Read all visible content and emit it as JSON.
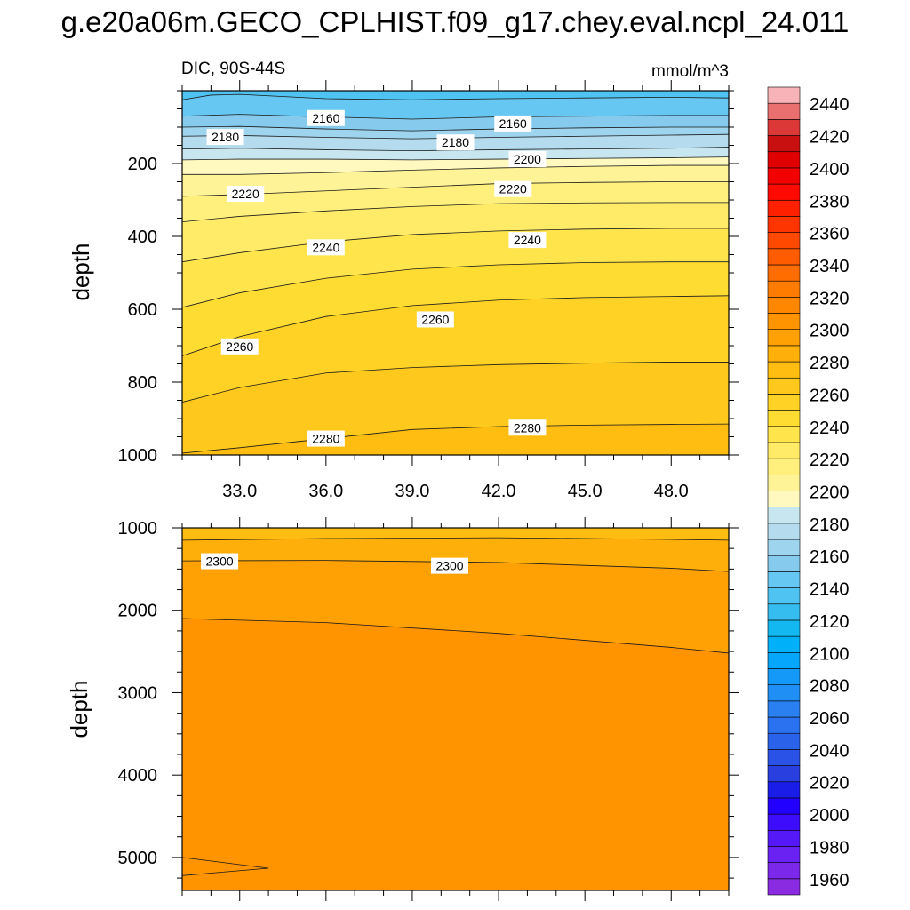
{
  "title": "g.e20a06m.GECO_CPLHIST.f09_g17.chey.eval.ncpl_24.011",
  "chart_data": {
    "type": "contour",
    "variable_label": "DIC, 90S-44S",
    "units": "mmol/m^3",
    "panels": [
      {
        "name": "upper",
        "ylabel": "depth",
        "xlim": [
          31.0,
          50.0
        ],
        "ylim": [
          0,
          1000
        ],
        "y_inverted": true,
        "x_ticks": [
          "33.0",
          "36.0",
          "39.0",
          "42.0",
          "45.0",
          "48.0"
        ],
        "x_tick_values": [
          33,
          36,
          39,
          42,
          45,
          48
        ],
        "y_ticks": [
          "200",
          "400",
          "600",
          "800",
          "1000"
        ],
        "y_tick_values": [
          200,
          400,
          600,
          800,
          1000
        ],
        "contours": [
          {
            "level": 2150,
            "points": [
              [
                31,
                25
              ],
              [
                32,
                12
              ],
              [
                33,
                10
              ],
              [
                36,
                22
              ],
              [
                39,
                25
              ],
              [
                42,
                22
              ],
              [
                45,
                20
              ],
              [
                48,
                18
              ],
              [
                50,
                20
              ]
            ]
          },
          {
            "level": 2160,
            "points": [
              [
                31,
                70
              ],
              [
                33,
                65
              ],
              [
                36,
                72
              ],
              [
                39,
                78
              ],
              [
                42,
                72
              ],
              [
                45,
                70
              ],
              [
                48,
                68
              ],
              [
                50,
                68
              ]
            ]
          },
          {
            "level": 2170,
            "points": [
              [
                31,
                100
              ],
              [
                33,
                98
              ],
              [
                36,
                105
              ],
              [
                39,
                110
              ],
              [
                42,
                105
              ],
              [
                45,
                102
              ],
              [
                48,
                100
              ],
              [
                50,
                100
              ]
            ]
          },
          {
            "level": 2180,
            "points": [
              [
                31,
                125
              ],
              [
                33,
                123
              ],
              [
                36,
                128
              ],
              [
                39,
                132
              ],
              [
                42,
                128
              ],
              [
                45,
                125
              ],
              [
                48,
                122
              ],
              [
                50,
                120
              ]
            ]
          },
          {
            "level": 2190,
            "points": [
              [
                31,
                160
              ],
              [
                33,
                158
              ],
              [
                36,
                162
              ],
              [
                39,
                165
              ],
              [
                42,
                162
              ],
              [
                45,
                160
              ],
              [
                48,
                158
              ],
              [
                50,
                155
              ]
            ]
          },
          {
            "level": 2200,
            "points": [
              [
                31,
                190
              ],
              [
                33,
                188
              ],
              [
                36,
                188
              ],
              [
                39,
                190
              ],
              [
                42,
                188
              ],
              [
                45,
                186
              ],
              [
                48,
                184
              ],
              [
                50,
                182
              ]
            ]
          },
          {
            "level": 2210,
            "points": [
              [
                31,
                230
              ],
              [
                33,
                230
              ],
              [
                36,
                225
              ],
              [
                39,
                218
              ],
              [
                42,
                212
              ],
              [
                45,
                208
              ],
              [
                48,
                205
              ],
              [
                50,
                205
              ]
            ]
          },
          {
            "level": 2220,
            "points": [
              [
                31,
                290
              ],
              [
                33,
                285
              ],
              [
                36,
                275
              ],
              [
                39,
                265
              ],
              [
                42,
                255
              ],
              [
                45,
                252
              ],
              [
                48,
                250
              ],
              [
                50,
                250
              ]
            ]
          },
          {
            "level": 2230,
            "points": [
              [
                31,
                360
              ],
              [
                33,
                345
              ],
              [
                36,
                330
              ],
              [
                39,
                318
              ],
              [
                42,
                310
              ],
              [
                45,
                308
              ],
              [
                48,
                307
              ],
              [
                50,
                307
              ]
            ]
          },
          {
            "level": 2240,
            "points": [
              [
                31,
                470
              ],
              [
                33,
                445
              ],
              [
                36,
                415
              ],
              [
                39,
                395
              ],
              [
                42,
                385
              ],
              [
                45,
                380
              ],
              [
                48,
                378
              ],
              [
                50,
                378
              ]
            ]
          },
          {
            "level": 2250,
            "points": [
              [
                31,
                595
              ],
              [
                33,
                555
              ],
              [
                36,
                515
              ],
              [
                39,
                490
              ],
              [
                42,
                478
              ],
              [
                45,
                472
              ],
              [
                48,
                470
              ],
              [
                50,
                470
              ]
            ]
          },
          {
            "level": 2260,
            "points": [
              [
                31,
                728
              ],
              [
                33,
                675
              ],
              [
                36,
                620
              ],
              [
                39,
                590
              ],
              [
                42,
                575
              ],
              [
                45,
                568
              ],
              [
                48,
                565
              ],
              [
                50,
                563
              ]
            ]
          },
          {
            "level": 2270,
            "points": [
              [
                31,
                855
              ],
              [
                33,
                815
              ],
              [
                36,
                775
              ],
              [
                39,
                760
              ],
              [
                42,
                752
              ],
              [
                45,
                748
              ],
              [
                48,
                745
              ],
              [
                50,
                745
              ]
            ]
          },
          {
            "level": 2280,
            "points": [
              [
                31,
                995
              ],
              [
                33,
                980
              ],
              [
                36,
                955
              ],
              [
                39,
                930
              ],
              [
                42,
                922
              ],
              [
                45,
                918
              ],
              [
                48,
                916
              ],
              [
                50,
                915
              ]
            ]
          }
        ],
        "contour_labels": [
          {
            "text": "2160",
            "x": 36.0,
            "y": 75
          },
          {
            "text": "2160",
            "x": 42.5,
            "y": 90
          },
          {
            "text": "2180",
            "x": 32.5,
            "y": 127
          },
          {
            "text": "2180",
            "x": 40.5,
            "y": 142
          },
          {
            "text": "2200",
            "x": 43.0,
            "y": 188
          },
          {
            "text": "2220",
            "x": 33.2,
            "y": 283
          },
          {
            "text": "2220",
            "x": 42.5,
            "y": 270
          },
          {
            "text": "2240",
            "x": 36.0,
            "y": 430
          },
          {
            "text": "2240",
            "x": 43.0,
            "y": 410
          },
          {
            "text": "2260",
            "x": 39.8,
            "y": 628
          },
          {
            "text": "2260",
            "x": 33.0,
            "y": 702
          },
          {
            "text": "2280",
            "x": 43.0,
            "y": 925
          },
          {
            "text": "2280",
            "x": 36.0,
            "y": 955
          }
        ]
      },
      {
        "name": "lower",
        "ylabel": "depth",
        "xlim": [
          31.0,
          50.0
        ],
        "ylim": [
          1000,
          5400
        ],
        "y_inverted": true,
        "y_ticks": [
          "1000",
          "2000",
          "3000",
          "4000",
          "5000"
        ],
        "y_tick_values": [
          1000,
          2000,
          3000,
          4000,
          5000
        ],
        "contours": [
          {
            "level": 2290,
            "points": [
              [
                31,
                1150
              ],
              [
                36,
                1130
              ],
              [
                42,
                1120
              ],
              [
                48,
                1140
              ],
              [
                50,
                1150
              ]
            ]
          },
          {
            "level": 2300,
            "points": [
              [
                31,
                1400
              ],
              [
                36,
                1395
              ],
              [
                42,
                1420
              ],
              [
                48,
                1490
              ],
              [
                50,
                1530
              ]
            ]
          },
          {
            "level": 2310,
            "points": [
              [
                31,
                2100
              ],
              [
                36,
                2150
              ],
              [
                42,
                2280
              ],
              [
                48,
                2450
              ],
              [
                50,
                2520
              ]
            ]
          },
          {
            "level": 2310,
            "points": [
              [
                31,
                5000
              ],
              [
                34,
                5130
              ],
              [
                31,
                5220
              ]
            ]
          }
        ],
        "contour_labels": [
          {
            "text": "2300",
            "x": 32.3,
            "y": 1405
          },
          {
            "text": "2300",
            "x": 40.3,
            "y": 1460
          }
        ]
      }
    ],
    "colorbar": {
      "levels": [
        1960,
        1970,
        1980,
        1990,
        2000,
        2010,
        2020,
        2030,
        2040,
        2050,
        2060,
        2070,
        2080,
        2090,
        2100,
        2110,
        2120,
        2130,
        2140,
        2150,
        2160,
        2170,
        2180,
        2190,
        2200,
        2210,
        2220,
        2230,
        2240,
        2250,
        2260,
        2270,
        2280,
        2290,
        2300,
        2310,
        2320,
        2330,
        2340,
        2350,
        2360,
        2370,
        2380,
        2390,
        2400,
        2410,
        2420,
        2430,
        2440,
        2450
      ],
      "colors": [
        "#8a2be2",
        "#7b28ea",
        "#6a22f2",
        "#5519f8",
        "#3d0cfc",
        "#2200ff",
        "#1a1ce8",
        "#2a3fe0",
        "#2b52e6",
        "#2b62ea",
        "#2a72ef",
        "#2a80f0",
        "#1f8ff5",
        "#1499f8",
        "#06a6fc",
        "#00b0f8",
        "#14b8f0",
        "#34bdee",
        "#4fc3f2",
        "#67c7f3",
        "#86cbee",
        "#9ed4ee",
        "#b4dcee",
        "#c8e6f0",
        "#fff9c0",
        "#fff398",
        "#fff07e",
        "#ffeb68",
        "#ffe44c",
        "#ffdc32",
        "#ffd225",
        "#ffc81c",
        "#ffbd12",
        "#ffaf0a",
        "#ffa005",
        "#ff9400",
        "#ff8700",
        "#ff7c00",
        "#ff6d00",
        "#ff5c00",
        "#ff4800",
        "#ff3500",
        "#ff2000",
        "#ff0a00",
        "#f20000",
        "#e00000",
        "#c81010",
        "#dc3838",
        "#ea7070",
        "#f8b3b8"
      ],
      "tick_labels": [
        "1960",
        "1980",
        "2000",
        "2020",
        "2040",
        "2060",
        "2080",
        "2100",
        "2120",
        "2140",
        "2160",
        "2180",
        "2200",
        "2220",
        "2240",
        "2260",
        "2280",
        "2300",
        "2320",
        "2340",
        "2360",
        "2380",
        "2400",
        "2420",
        "2440"
      ],
      "tick_values": [
        1960,
        1980,
        2000,
        2020,
        2040,
        2060,
        2080,
        2100,
        2120,
        2140,
        2160,
        2180,
        2200,
        2220,
        2240,
        2260,
        2280,
        2300,
        2320,
        2340,
        2360,
        2380,
        2400,
        2420,
        2440
      ]
    }
  }
}
